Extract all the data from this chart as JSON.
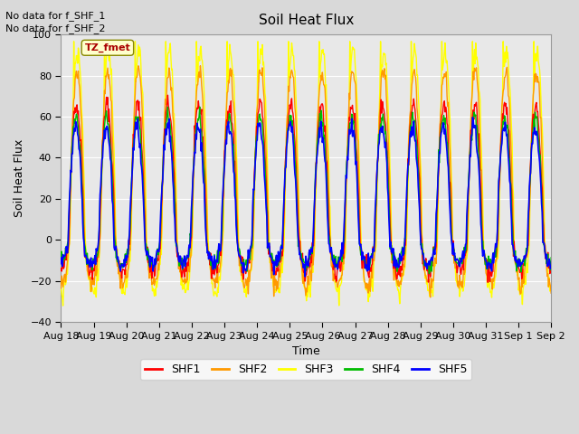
{
  "title": "Soil Heat Flux",
  "ylabel": "Soil Heat Flux",
  "xlabel": "Time",
  "ylim": [
    -40,
    100
  ],
  "yticks": [
    -40,
    -20,
    0,
    20,
    40,
    60,
    80,
    100
  ],
  "xtick_labels": [
    "Aug 18",
    "Aug 19",
    "Aug 20",
    "Aug 21",
    "Aug 22",
    "Aug 23",
    "Aug 24",
    "Aug 25",
    "Aug 26",
    "Aug 27",
    "Aug 28",
    "Aug 29",
    "Aug 30",
    "Aug 31",
    "Sep 1",
    "Sep 2"
  ],
  "legend_labels": [
    "SHF1",
    "SHF2",
    "SHF3",
    "SHF4",
    "SHF5"
  ],
  "legend_colors": [
    "#ff0000",
    "#ff9900",
    "#ffff00",
    "#00bb00",
    "#0000ff"
  ],
  "annotations": [
    "No data for f_SHF_1",
    "No data for f_SHF_2"
  ],
  "box_label": "TZ_fmet",
  "figure_bg_color": "#d9d9d9",
  "axes_bg_color": "#e8e8e8",
  "n_days": 16,
  "points_per_day": 48,
  "shf1_day_peak": 66,
  "shf1_night_trough": -15,
  "shf2_day_peak": 82,
  "shf2_night_trough": -22,
  "shf3_day_peak": 92,
  "shf3_night_trough": -25,
  "shf4_day_peak": 60,
  "shf4_night_trough": -12,
  "shf5_day_peak": 55,
  "shf5_night_trough": -12
}
